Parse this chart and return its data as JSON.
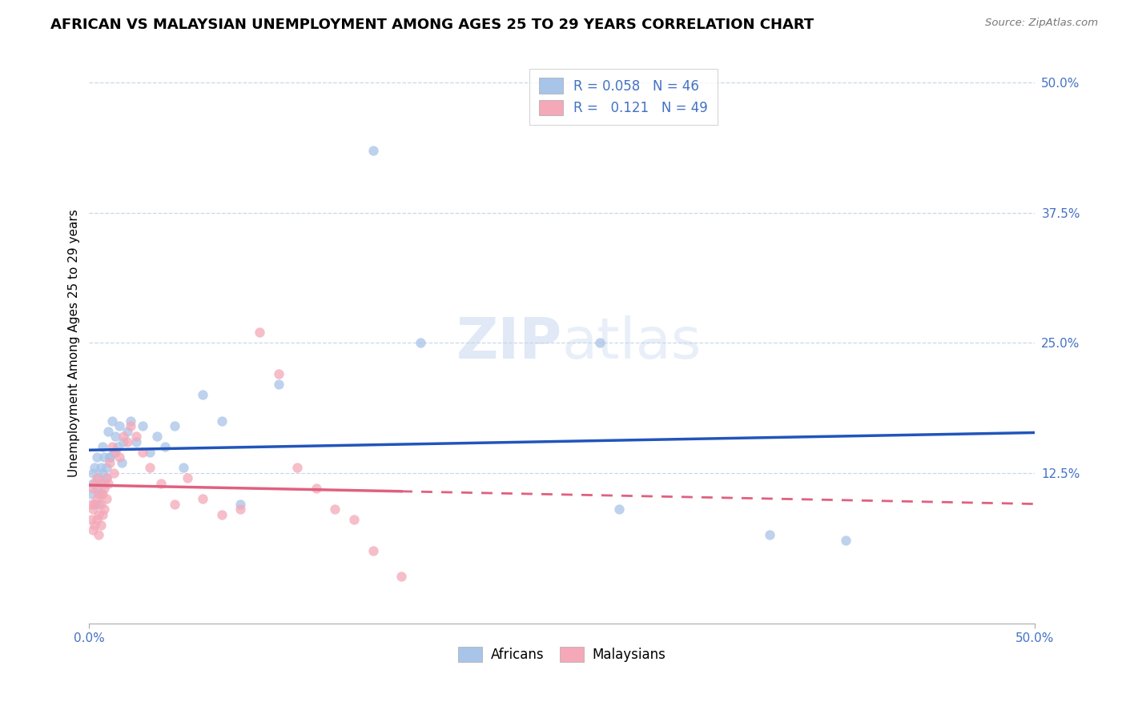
{
  "title": "AFRICAN VS MALAYSIAN UNEMPLOYMENT AMONG AGES 25 TO 29 YEARS CORRELATION CHART",
  "source": "Source: ZipAtlas.com",
  "ylabel": "Unemployment Among Ages 25 to 29 years",
  "xlim": [
    0.0,
    0.5
  ],
  "ylim": [
    -0.02,
    0.52
  ],
  "ytick_positions": [
    0.125,
    0.25,
    0.375,
    0.5
  ],
  "ytick_labels": [
    "12.5%",
    "25.0%",
    "37.5%",
    "50.0%"
  ],
  "africans_color": "#a8c4e8",
  "malaysians_color": "#f4a8b8",
  "africans_line_color": "#2255bb",
  "malaysians_line_color": "#e06080",
  "africans_R": 0.058,
  "africans_N": 46,
  "malaysians_R": 0.121,
  "malaysians_N": 49,
  "background_color": "#ffffff",
  "grid_color": "#c8d8e8",
  "title_fontsize": 13,
  "label_fontsize": 11,
  "tick_fontsize": 11,
  "legend_fontsize": 12,
  "africans_x": [
    0.001,
    0.002,
    0.002,
    0.003,
    0.003,
    0.004,
    0.004,
    0.005,
    0.005,
    0.006,
    0.006,
    0.007,
    0.007,
    0.008,
    0.008,
    0.009,
    0.01,
    0.011,
    0.012,
    0.013,
    0.014,
    0.015,
    0.016,
    0.018,
    0.02,
    0.022,
    0.025,
    0.028,
    0.032,
    0.036,
    0.04,
    0.045,
    0.05,
    0.06,
    0.07,
    0.08,
    0.1,
    0.15,
    0.175,
    0.27,
    0.28,
    0.36,
    0.4,
    0.009,
    0.011,
    0.017
  ],
  "africans_y": [
    0.105,
    0.115,
    0.125,
    0.095,
    0.13,
    0.11,
    0.14,
    0.12,
    0.095,
    0.13,
    0.105,
    0.125,
    0.15,
    0.115,
    0.14,
    0.13,
    0.165,
    0.14,
    0.175,
    0.145,
    0.16,
    0.15,
    0.17,
    0.155,
    0.165,
    0.175,
    0.155,
    0.17,
    0.145,
    0.16,
    0.15,
    0.17,
    0.13,
    0.2,
    0.175,
    0.095,
    0.21,
    0.435,
    0.25,
    0.25,
    0.09,
    0.065,
    0.06,
    0.12,
    0.14,
    0.135
  ],
  "malaysians_x": [
    0.001,
    0.001,
    0.002,
    0.002,
    0.002,
    0.003,
    0.003,
    0.003,
    0.004,
    0.004,
    0.004,
    0.005,
    0.005,
    0.005,
    0.006,
    0.006,
    0.006,
    0.007,
    0.007,
    0.008,
    0.008,
    0.009,
    0.009,
    0.01,
    0.011,
    0.012,
    0.013,
    0.014,
    0.016,
    0.018,
    0.02,
    0.022,
    0.025,
    0.028,
    0.032,
    0.038,
    0.045,
    0.052,
    0.06,
    0.07,
    0.08,
    0.09,
    0.1,
    0.11,
    0.12,
    0.13,
    0.14,
    0.15,
    0.165
  ],
  "malaysians_y": [
    0.08,
    0.095,
    0.07,
    0.09,
    0.11,
    0.075,
    0.095,
    0.115,
    0.08,
    0.1,
    0.12,
    0.065,
    0.085,
    0.105,
    0.075,
    0.095,
    0.115,
    0.085,
    0.105,
    0.09,
    0.11,
    0.1,
    0.12,
    0.115,
    0.135,
    0.15,
    0.125,
    0.145,
    0.14,
    0.16,
    0.155,
    0.17,
    0.16,
    0.145,
    0.13,
    0.115,
    0.095,
    0.12,
    0.1,
    0.085,
    0.09,
    0.26,
    0.22,
    0.13,
    0.11,
    0.09,
    0.08,
    0.05,
    0.025
  ]
}
